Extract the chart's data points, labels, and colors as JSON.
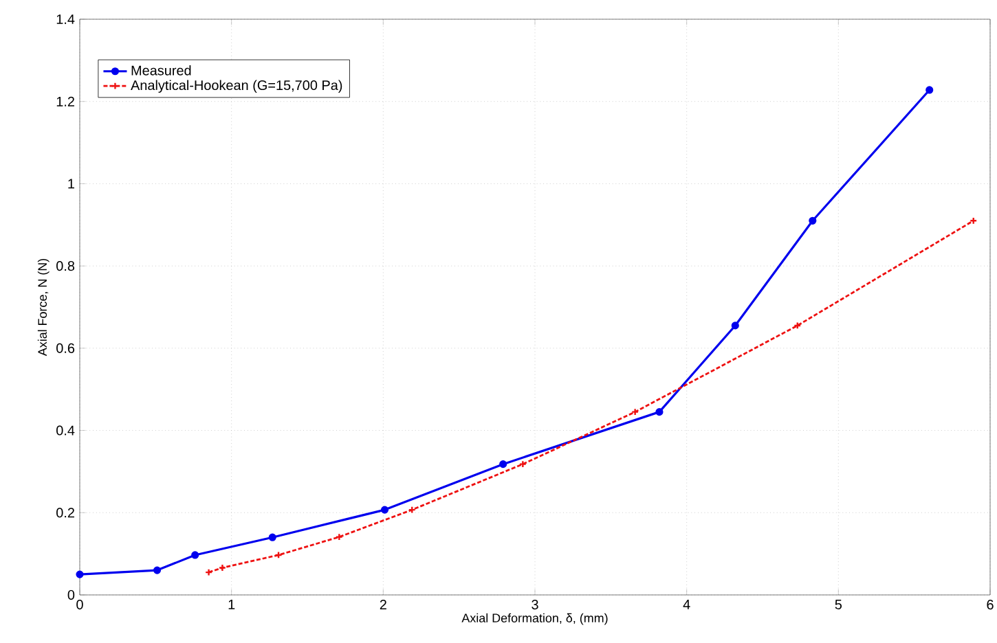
{
  "chart_data": {
    "type": "line",
    "xlabel": "Axial Deformation, δ, (mm)",
    "ylabel": "Axial Force, N (N)",
    "xlim": [
      0,
      6
    ],
    "ylim": [
      0,
      1.4
    ],
    "xticks": [
      0,
      1,
      2,
      3,
      4,
      5,
      6
    ],
    "yticks": [
      0,
      0.2,
      0.4,
      0.6,
      0.8,
      1,
      1.2,
      1.4
    ],
    "grid": true,
    "legend": "top left",
    "series": [
      {
        "name": "Measured",
        "color": "#0000ee",
        "marker": "circle",
        "line_style": "solid",
        "x": [
          0,
          0.51,
          0.76,
          1.27,
          2.01,
          2.79,
          3.82,
          4.32,
          4.83,
          5.6
        ],
        "values": [
          0.05,
          0.06,
          0.097,
          0.14,
          0.207,
          0.318,
          0.445,
          0.655,
          0.91,
          1.228
        ]
      },
      {
        "name": "Analytical-Hookean (G=15,700 Pa)",
        "color": "#ee1111",
        "marker": "cross",
        "line_style": "dashed",
        "x": [
          0.85,
          0.94,
          1.31,
          1.71,
          2.19,
          2.92,
          3.66,
          4.73,
          5.89
        ],
        "values": [
          0.055,
          0.066,
          0.097,
          0.141,
          0.207,
          0.318,
          0.445,
          0.655,
          0.91
        ]
      }
    ]
  }
}
